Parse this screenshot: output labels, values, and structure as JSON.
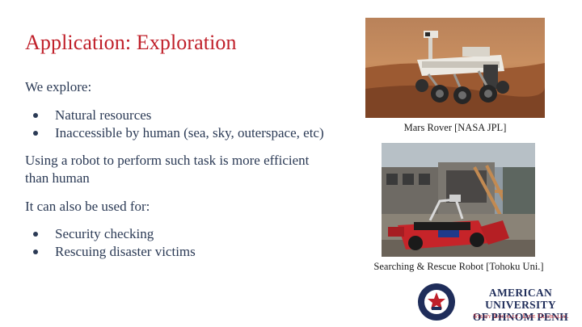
{
  "slide": {
    "title": "Application: Exploration",
    "intro": "We explore:",
    "explore_items": [
      "Natural resources",
      "Inaccessible by human (sea, sky, outerspace, etc)"
    ],
    "efficiency_line1": "Using a robot to perform such task is more efficient",
    "efficiency_line2": "than human",
    "also_used": "It can also be used for:",
    "use_items": [
      "Security checking",
      "Rescuing disaster victims"
    ]
  },
  "figures": {
    "mars_caption": "Mars Rover [NASA JPL]",
    "rescue_caption": "Searching & Rescue Robot [Tohoku Uni.]"
  },
  "logo": {
    "name_line1": "American University",
    "name_line2": "of Phnom Penh",
    "tagline": "Study Locally. Live Globally.",
    "seal_top_text": "American University",
    "seal_bottom_text": "of Phnom Penh",
    "colors": {
      "navy": "#1f2d5a",
      "red": "#c0202a"
    }
  },
  "colors": {
    "title": "#c0202a",
    "body_text": "#2b3a55"
  }
}
